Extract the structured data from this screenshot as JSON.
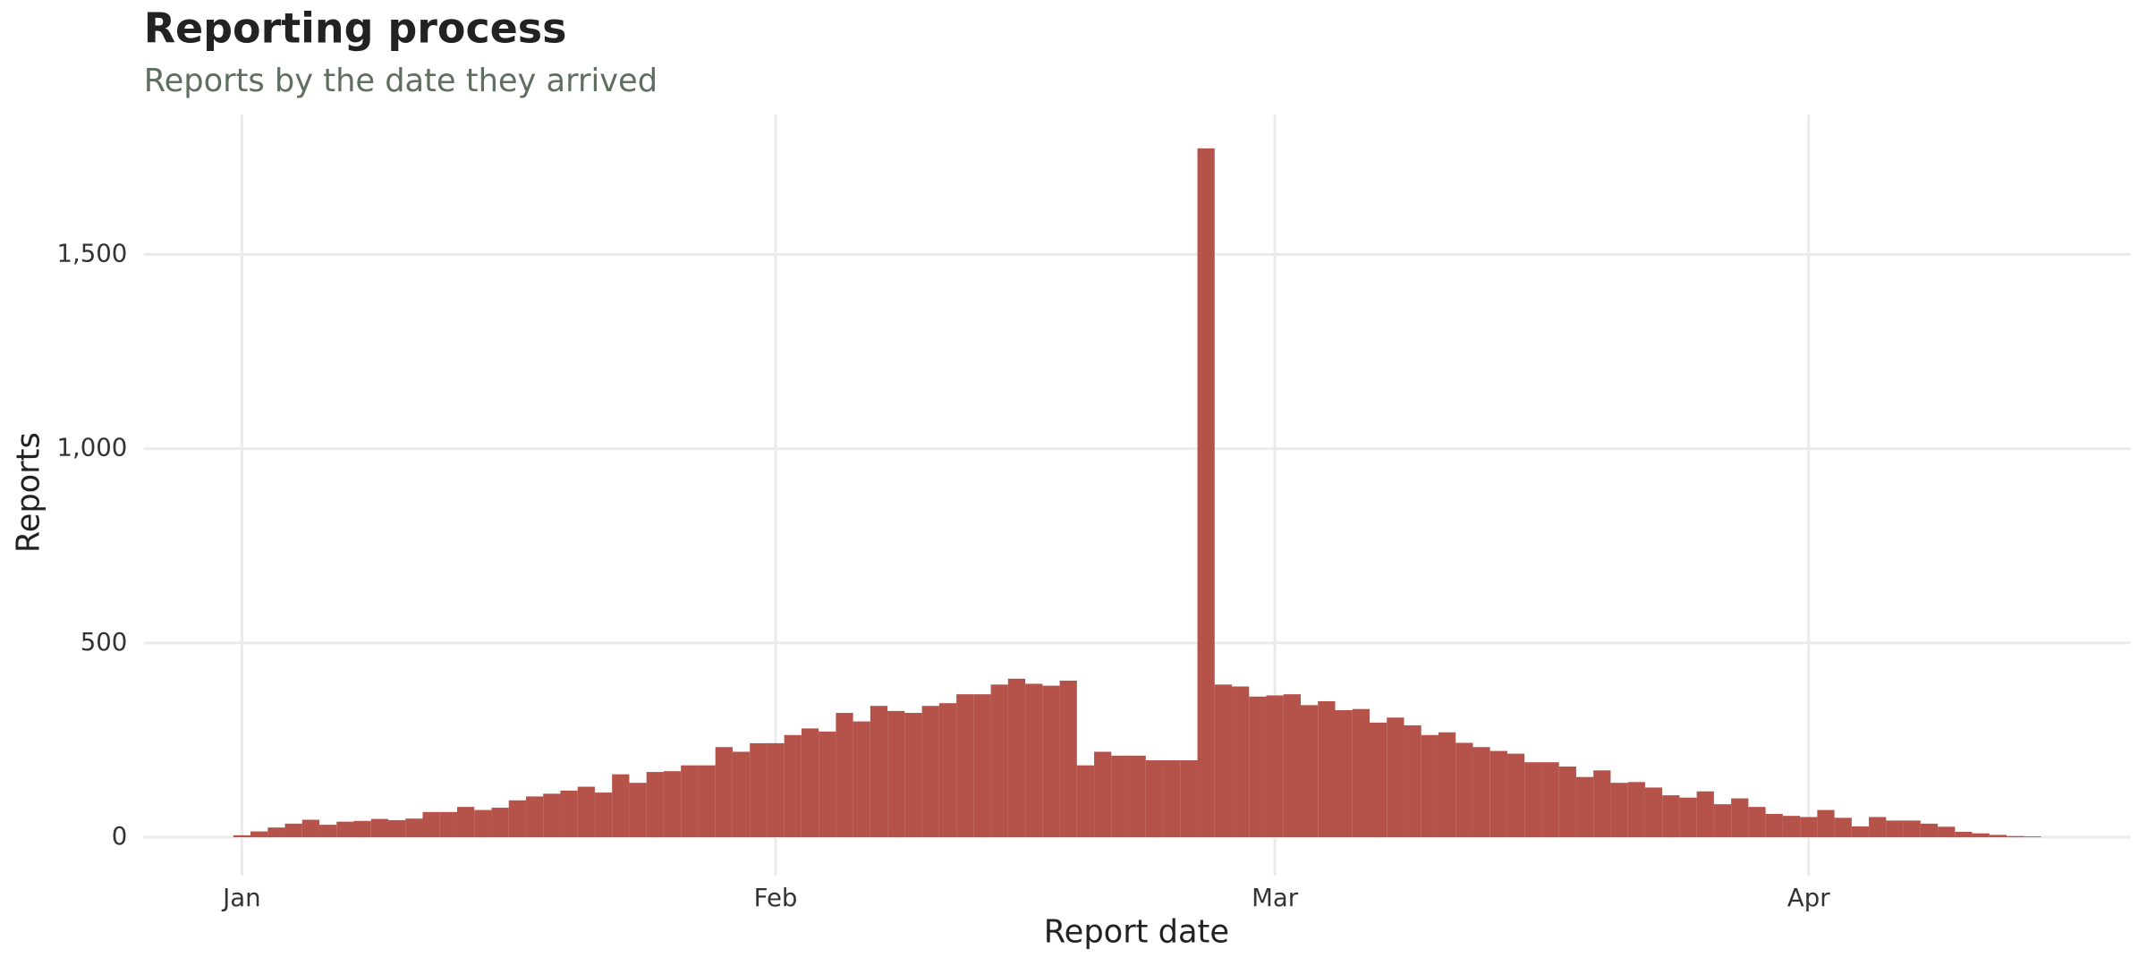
{
  "chart_data": {
    "type": "histogram",
    "title": "Reporting process",
    "subtitle": "Reports by the date they arrived",
    "x_label": "Report date",
    "y_label": "Reports",
    "color": "#b5534a",
    "grid": true,
    "bins": [
      -0.5,
      0.5,
      1.5,
      2.5,
      3.5,
      4.5,
      5.5,
      6.5,
      7.5,
      8.5,
      9.5,
      10.5,
      11.5,
      12.5,
      13.5,
      14.5,
      15.5,
      16.5,
      17.5,
      18.5,
      19.5,
      20.5,
      21.5,
      22.5,
      23.5,
      24.5,
      25.5,
      26.5,
      27.5,
      28.5,
      29.5,
      30.5,
      31.5,
      32.5,
      33.5,
      34.5,
      35.5,
      36.5,
      37.5,
      38.5,
      39.5,
      40.5,
      41.5,
      42.5,
      43.5,
      44.5,
      45.5,
      46.5,
      47.5,
      48.5,
      49.5,
      50.5,
      51.5,
      52.5,
      53.5,
      54.5,
      55.5,
      56.5,
      57.5,
      58.5,
      59.5,
      60.5,
      61.5,
      62.5,
      63.5,
      64.5,
      65.5,
      66.5,
      67.5,
      68.5,
      69.5,
      70.5,
      71.5,
      72.5,
      73.5,
      74.5,
      75.5,
      76.5,
      77.5,
      78.5,
      79.5,
      80.5,
      81.5,
      82.5,
      83.5,
      84.5,
      85.5,
      86.5,
      87.5,
      88.5,
      89.5,
      90.5,
      91.5,
      92.5,
      93.5,
      94.5,
      95.5,
      96.5,
      97.5,
      98.5,
      99.5,
      100.5,
      101.5,
      102.5,
      103.5,
      104.5
    ],
    "values": [
      5,
      15,
      25,
      35,
      45,
      32,
      40,
      42,
      47,
      44,
      48,
      65,
      65,
      78,
      70,
      76,
      95,
      105,
      112,
      120,
      130,
      115,
      162,
      140,
      168,
      170,
      185,
      185,
      232,
      220,
      242,
      242,
      263,
      280,
      272,
      320,
      298,
      338,
      325,
      320,
      338,
      345,
      368,
      368,
      393,
      408,
      395,
      390,
      403,
      185,
      220,
      210,
      210,
      198,
      198,
      198,
      1773,
      393,
      388,
      362,
      365,
      368,
      340,
      350,
      327,
      330,
      295,
      308,
      288,
      263,
      270,
      243,
      232,
      222,
      215,
      193,
      193,
      182,
      155,
      172,
      140,
      142,
      128,
      108,
      102,
      118,
      85,
      100,
      78,
      60,
      55,
      52,
      70,
      50,
      28,
      52,
      43,
      43,
      35,
      27,
      14,
      10,
      6,
      3,
      2
    ],
    "xlim": [
      -5.7,
      109.7
    ],
    "xticks": [
      {
        "value": 0,
        "label": "Jan"
      },
      {
        "value": 31,
        "label": "Feb"
      },
      {
        "value": 60,
        "label": "Mar"
      },
      {
        "value": 91,
        "label": "Apr"
      }
    ],
    "ylim": [
      -99,
      1859
    ],
    "yticks": [
      0,
      500,
      {
        "value": 1000,
        "label": "1,000"
      },
      {
        "value": 1500,
        "label": "1,500"
      }
    ]
  }
}
